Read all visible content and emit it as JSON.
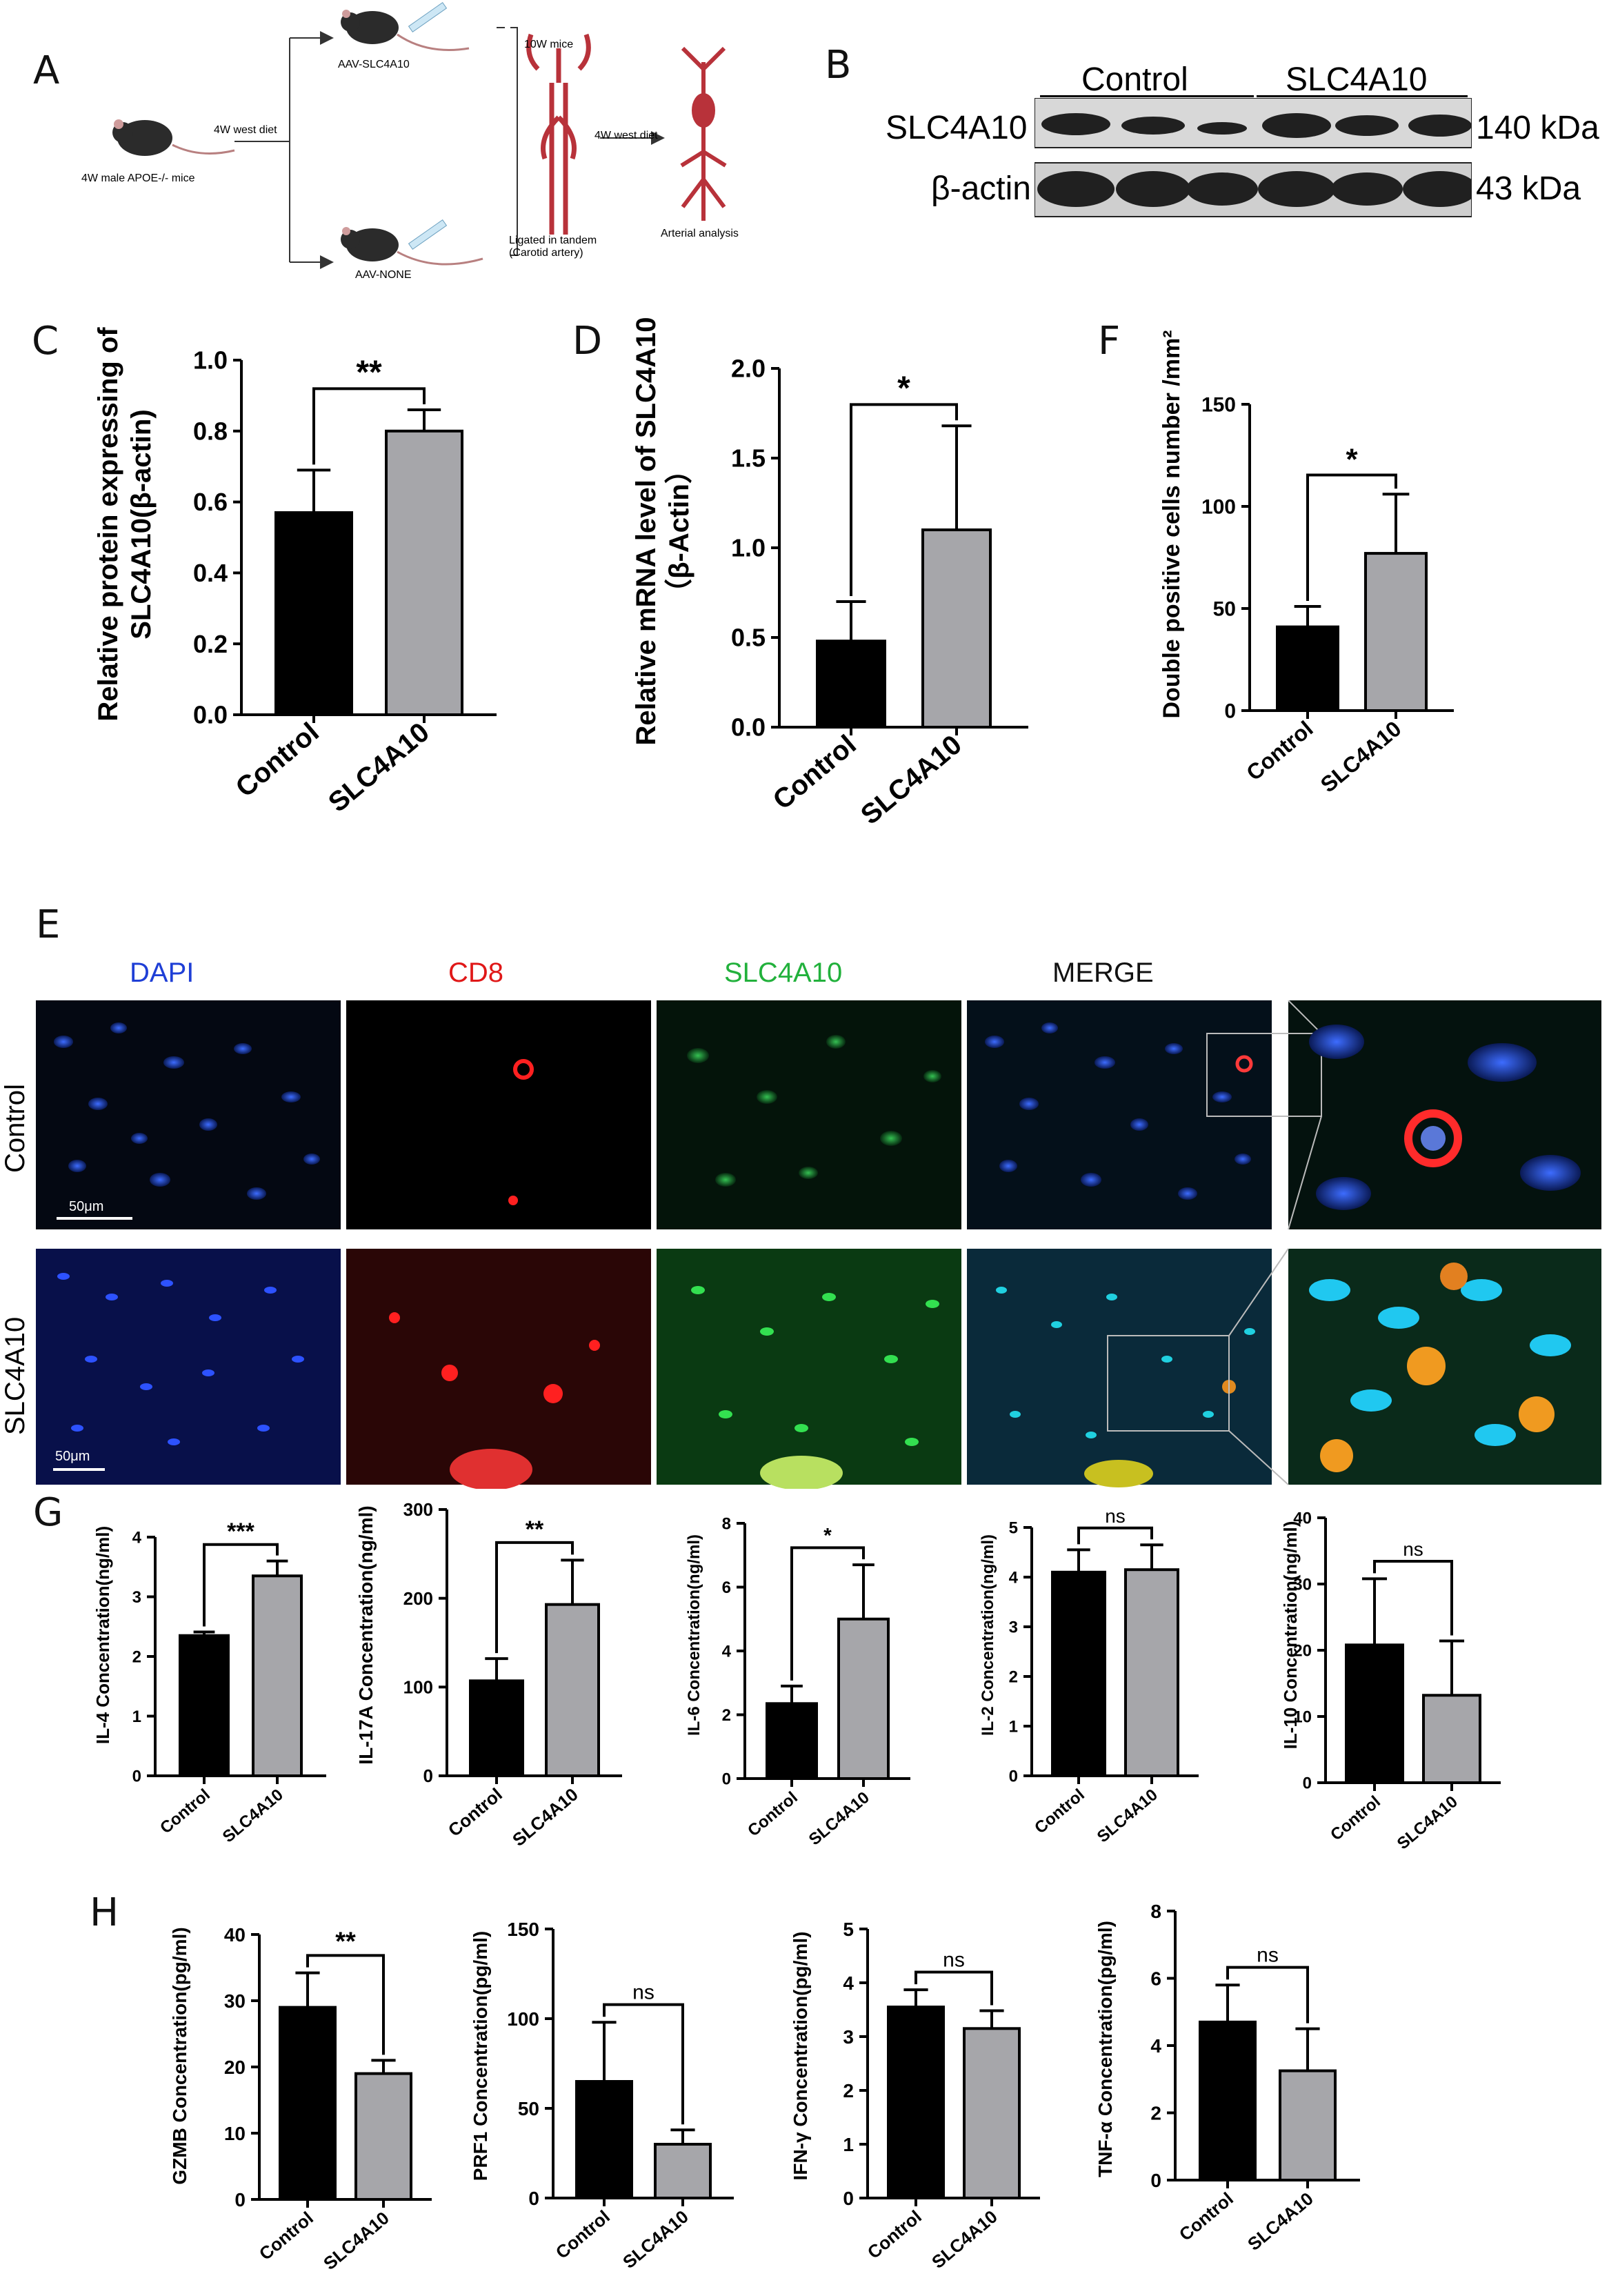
{
  "panel_letters": {
    "a": "A",
    "b": "B",
    "c": "C",
    "d": "D",
    "e": "E",
    "f": "F",
    "g": "G",
    "h": "H"
  },
  "colors": {
    "control": "#000000",
    "slc": "#a6a6aa",
    "dapi": "#1f3fd6",
    "cd8": "#e01818",
    "slc_stain": "#22b13c",
    "vessel": "#b8323a"
  },
  "schematic": {
    "mouse_start": "4W male APOE-/- mice",
    "step1": "4W west diet",
    "aav_slc": "AAV-SLC4A10",
    "aav_none": "AAV-NONE",
    "mice_10w": "10W  mice",
    "ligated": "Ligated in tandem\n(Carotid artery)",
    "step2": "4W west diet",
    "arterial": "Arterial analysis"
  },
  "western": {
    "group_control": "Control",
    "group_slc": "SLC4A10",
    "row1_label": "SLC4A10",
    "row1_kda": "140 kDa",
    "row2_label": "β-actin",
    "row2_kda": "43 kDa"
  },
  "if_panel": {
    "col_dapi": "DAPI",
    "col_cd8": "CD8",
    "col_slc": "SLC4A10",
    "col_merge": "MERGE",
    "row_control": "Control",
    "row_slc": "SLC4A10",
    "scale1": "50μm",
    "scale2": "50μm"
  },
  "chart_data": [
    {
      "id": "C",
      "type": "bar",
      "categories": [
        "Control",
        "SLC4A10"
      ],
      "values": [
        0.57,
        0.8
      ],
      "errors": [
        0.12,
        0.06
      ],
      "ylabel": "Relative protein expressing of\nSLC4A10(β-actin)",
      "ylim": [
        0,
        1.0
      ],
      "yticks": [
        "0.0",
        "0.2",
        "0.4",
        "0.6",
        "0.8",
        "1.0"
      ],
      "significance": "**"
    },
    {
      "id": "D",
      "type": "bar",
      "categories": [
        "Control",
        "SLC4A10"
      ],
      "values": [
        0.48,
        1.1
      ],
      "errors": [
        0.22,
        0.58
      ],
      "ylabel": "Relative mRNA level of SLC4A10\n（β-Actin）",
      "ylim": [
        0,
        2.0
      ],
      "yticks": [
        "0.0",
        "0.5",
        "1.0",
        "1.5",
        "2.0"
      ],
      "significance": "*"
    },
    {
      "id": "F",
      "type": "bar",
      "categories": [
        "Control",
        "SLC4A10"
      ],
      "values": [
        41,
        77
      ],
      "errors": [
        10,
        29
      ],
      "ylabel": "Double positive cells number /mm²",
      "ylim": [
        0,
        150
      ],
      "yticks": [
        "0",
        "50",
        "100",
        "150"
      ],
      "significance": "*"
    },
    {
      "id": "G1",
      "type": "bar",
      "categories": [
        "Control",
        "SLC4A10"
      ],
      "values": [
        2.35,
        3.35
      ],
      "errors": [
        0.06,
        0.25
      ],
      "ylabel": "IL-4 Concentration(ng/ml)",
      "ylim": [
        0,
        4
      ],
      "yticks": [
        "0",
        "1",
        "2",
        "3",
        "4"
      ],
      "significance": "***"
    },
    {
      "id": "G2",
      "type": "bar",
      "categories": [
        "Control",
        "SLC4A10"
      ],
      "values": [
        107,
        193
      ],
      "errors": [
        25,
        50
      ],
      "ylabel": "IL-17A Concentration(ng/ml)",
      "ylim": [
        0,
        300
      ],
      "yticks": [
        "0",
        "100",
        "200",
        "300"
      ],
      "significance": "**"
    },
    {
      "id": "G3",
      "type": "bar",
      "categories": [
        "Control",
        "SLC4A10"
      ],
      "values": [
        2.35,
        5.0
      ],
      "errors": [
        0.55,
        1.7
      ],
      "ylabel": "IL-6 Concentration(ng/ml)",
      "ylim": [
        0,
        8
      ],
      "yticks": [
        "0",
        "2",
        "4",
        "6",
        "8"
      ],
      "significance": "*"
    },
    {
      "id": "G4",
      "type": "bar",
      "categories": [
        "Control",
        "SLC4A10"
      ],
      "values": [
        4.1,
        4.15
      ],
      "errors": [
        0.45,
        0.5
      ],
      "ylabel": "IL-2 Concentration(ng/ml)",
      "ylim": [
        0,
        5
      ],
      "yticks": [
        "0",
        "1",
        "2",
        "3",
        "4",
        "5"
      ],
      "significance": "ns"
    },
    {
      "id": "G5",
      "type": "bar",
      "categories": [
        "Control",
        "SLC4A10"
      ],
      "values": [
        20.8,
        13.2
      ],
      "errors": [
        10,
        8.2
      ],
      "ylabel": "IL-10 Concentration(ng/ml)",
      "ylim": [
        0,
        40
      ],
      "yticks": [
        "0",
        "10",
        "20",
        "30",
        "40"
      ],
      "significance": "ns"
    },
    {
      "id": "H1",
      "type": "bar",
      "categories": [
        "Control",
        "SLC4A10"
      ],
      "values": [
        29,
        19
      ],
      "errors": [
        5.2,
        2
      ],
      "ylabel": "GZMB Concentration(pg/ml)",
      "ylim": [
        0,
        40
      ],
      "yticks": [
        "0",
        "10",
        "20",
        "30",
        "40"
      ],
      "significance": "**"
    },
    {
      "id": "H2",
      "type": "bar",
      "categories": [
        "Control",
        "SLC4A10"
      ],
      "values": [
        65,
        30
      ],
      "errors": [
        33,
        8
      ],
      "ylabel": "PRF1 Concentration(pg/ml)",
      "ylim": [
        0,
        150
      ],
      "yticks": [
        "0",
        "50",
        "100",
        "150"
      ],
      "significance": "ns"
    },
    {
      "id": "H3",
      "type": "bar",
      "categories": [
        "Control",
        "SLC4A10"
      ],
      "values": [
        3.55,
        3.15
      ],
      "errors": [
        0.32,
        0.33
      ],
      "ylabel": "IFN-γ Concentration(pg/ml)",
      "ylim": [
        0,
        5
      ],
      "yticks": [
        "0",
        "1",
        "2",
        "3",
        "4",
        "5"
      ],
      "significance": "ns"
    },
    {
      "id": "H4",
      "type": "bar",
      "categories": [
        "Control",
        "SLC4A10"
      ],
      "values": [
        4.7,
        3.25
      ],
      "errors": [
        1.1,
        1.25
      ],
      "ylabel": "TNF-α Concentration(pg/ml)",
      "ylim": [
        0,
        8
      ],
      "yticks": [
        "0",
        "2",
        "4",
        "6",
        "8"
      ],
      "significance": "ns"
    }
  ]
}
